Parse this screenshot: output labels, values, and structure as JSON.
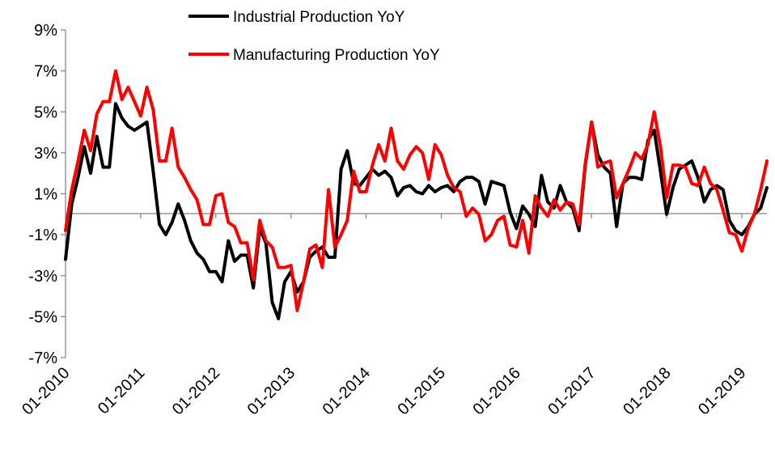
{
  "chart_data": {
    "type": "line",
    "title": "",
    "xlabel": "",
    "ylabel": "",
    "y_unit": "%",
    "ylim": [
      -7,
      9
    ],
    "y_ticks": [
      9,
      7,
      5,
      3,
      1,
      -1,
      -3,
      -5,
      -7
    ],
    "y_tick_labels": [
      "9%",
      "7%",
      "5%",
      "3%",
      "1%",
      "-1%",
      "-3%",
      "-5%",
      "-7%"
    ],
    "x_tick_labels": [
      "01-2010",
      "01-2011",
      "01-2012",
      "01-2013",
      "01-2014",
      "01-2015",
      "01-2016",
      "01-2017",
      "01-2018",
      "01-2019"
    ],
    "x_start": "2010-01",
    "x_end": "2019-05",
    "grid": false,
    "legend_position": "top-center",
    "series": [
      {
        "name": "Industrial Production YoY",
        "color": "#000000",
        "x": [
          "2010-01",
          "2010-02",
          "2010-03",
          "2010-04",
          "2010-05",
          "2010-06",
          "2010-07",
          "2010-08",
          "2010-09",
          "2010-10",
          "2010-11",
          "2010-12",
          "2011-01",
          "2011-02",
          "2011-03",
          "2011-04",
          "2011-05",
          "2011-06",
          "2011-07",
          "2011-08",
          "2011-09",
          "2011-10",
          "2011-11",
          "2011-12",
          "2012-01",
          "2012-02",
          "2012-03",
          "2012-04",
          "2012-05",
          "2012-06",
          "2012-07",
          "2012-08",
          "2012-09",
          "2012-10",
          "2012-11",
          "2012-12",
          "2013-01",
          "2013-02",
          "2013-03",
          "2013-04",
          "2013-05",
          "2013-06",
          "2013-07",
          "2013-08",
          "2013-09",
          "2013-10",
          "2013-11",
          "2013-12",
          "2014-01",
          "2014-02",
          "2014-03",
          "2014-04",
          "2014-05",
          "2014-06",
          "2014-07",
          "2014-08",
          "2014-09",
          "2014-10",
          "2014-11",
          "2014-12",
          "2015-01",
          "2015-02",
          "2015-03",
          "2015-04",
          "2015-05",
          "2015-06",
          "2015-07",
          "2015-08",
          "2015-09",
          "2015-10",
          "2015-11",
          "2015-12",
          "2016-01",
          "2016-02",
          "2016-03",
          "2016-04",
          "2016-05",
          "2016-06",
          "2016-07",
          "2016-08",
          "2016-09",
          "2016-10",
          "2016-11",
          "2016-12",
          "2017-01",
          "2017-02",
          "2017-03",
          "2017-04",
          "2017-05",
          "2017-06",
          "2017-07",
          "2017-08",
          "2017-09",
          "2017-10",
          "2017-11",
          "2017-12",
          "2018-01",
          "2018-02",
          "2018-03",
          "2018-04",
          "2018-05",
          "2018-06",
          "2018-07",
          "2018-08",
          "2018-09",
          "2018-10",
          "2018-11",
          "2018-12",
          "2019-01",
          "2019-02",
          "2019-03",
          "2019-04",
          "2019-05"
        ],
        "values": [
          -2.2,
          0.5,
          1.8,
          3.3,
          2.0,
          3.8,
          2.3,
          2.3,
          5.4,
          4.7,
          4.3,
          4.1,
          4.3,
          4.5,
          2.1,
          -0.5,
          -1.0,
          -0.4,
          0.5,
          -0.3,
          -1.3,
          -1.9,
          -2.2,
          -2.8,
          -2.8,
          -3.3,
          -1.3,
          -2.3,
          -2.0,
          -2.0,
          -3.6,
          -0.7,
          -1.4,
          -4.3,
          -5.1,
          -3.3,
          -2.8,
          -3.8,
          -3.3,
          -2.1,
          -1.8,
          -1.6,
          -2.1,
          -2.1,
          2.2,
          3.1,
          1.5,
          1.4,
          1.8,
          2.2,
          1.9,
          2.1,
          1.8,
          0.9,
          1.3,
          1.4,
          1.1,
          1.0,
          1.4,
          1.1,
          1.3,
          1.4,
          1.1,
          1.6,
          1.8,
          1.8,
          1.6,
          0.5,
          1.6,
          1.5,
          1.4,
          0.1,
          -0.7,
          0.4,
          0.0,
          -0.6,
          1.9,
          0.6,
          0.3,
          1.4,
          0.6,
          0.3,
          -0.8,
          2.4,
          4.5,
          2.9,
          2.3,
          2.0,
          -0.6,
          1.5,
          1.8,
          1.8,
          1.7,
          3.6,
          4.1,
          2.1,
          0.0,
          1.3,
          2.2,
          2.4,
          2.6,
          1.8,
          0.6,
          1.2,
          1.4,
          1.2,
          -0.3,
          -0.8,
          -1.0,
          -0.6,
          0.0,
          0.3,
          1.3
        ]
      },
      {
        "name": "Manufacturing Production YoY",
        "color": "#ff0000",
        "x": [
          "2010-01",
          "2010-02",
          "2010-03",
          "2010-04",
          "2010-05",
          "2010-06",
          "2010-07",
          "2010-08",
          "2010-09",
          "2010-10",
          "2010-11",
          "2010-12",
          "2011-01",
          "2011-02",
          "2011-03",
          "2011-04",
          "2011-05",
          "2011-06",
          "2011-07",
          "2011-08",
          "2011-09",
          "2011-10",
          "2011-11",
          "2011-12",
          "2012-01",
          "2012-02",
          "2012-03",
          "2012-04",
          "2012-05",
          "2012-06",
          "2012-07",
          "2012-08",
          "2012-09",
          "2012-10",
          "2012-11",
          "2012-12",
          "2013-01",
          "2013-02",
          "2013-03",
          "2013-04",
          "2013-05",
          "2013-06",
          "2013-07",
          "2013-08",
          "2013-09",
          "2013-10",
          "2013-11",
          "2013-12",
          "2014-01",
          "2014-02",
          "2014-03",
          "2014-04",
          "2014-05",
          "2014-06",
          "2014-07",
          "2014-08",
          "2014-09",
          "2014-10",
          "2014-11",
          "2014-12",
          "2015-01",
          "2015-02",
          "2015-03",
          "2015-04",
          "2015-05",
          "2015-06",
          "2015-07",
          "2015-08",
          "2015-09",
          "2015-10",
          "2015-11",
          "2015-12",
          "2016-01",
          "2016-02",
          "2016-03",
          "2016-04",
          "2016-05",
          "2016-06",
          "2016-07",
          "2016-08",
          "2016-09",
          "2016-10",
          "2016-11",
          "2016-12",
          "2017-01",
          "2017-02",
          "2017-03",
          "2017-04",
          "2017-05",
          "2017-06",
          "2017-07",
          "2017-08",
          "2017-09",
          "2017-10",
          "2017-11",
          "2017-12",
          "2018-01",
          "2018-02",
          "2018-03",
          "2018-04",
          "2018-05",
          "2018-06",
          "2018-07",
          "2018-08",
          "2018-09",
          "2018-10",
          "2018-11",
          "2018-12",
          "2019-01",
          "2019-02",
          "2019-03",
          "2019-04",
          "2019-05"
        ],
        "values": [
          -0.8,
          1.2,
          2.6,
          4.1,
          3.1,
          4.9,
          5.5,
          5.5,
          7.0,
          5.6,
          6.2,
          5.5,
          4.8,
          6.2,
          5.1,
          2.6,
          2.6,
          4.2,
          2.3,
          1.8,
          1.2,
          0.7,
          -0.5,
          -0.5,
          0.9,
          1.0,
          -0.4,
          -0.6,
          -1.4,
          -1.4,
          -3.2,
          -0.3,
          -1.3,
          -1.6,
          -2.6,
          -2.6,
          -2.5,
          -4.7,
          -3.3,
          -1.7,
          -1.5,
          -2.6,
          1.2,
          -1.6,
          -1.0,
          -0.3,
          2.1,
          1.1,
          1.1,
          2.4,
          3.4,
          2.6,
          4.2,
          2.6,
          2.2,
          2.9,
          3.3,
          3.0,
          1.7,
          3.4,
          2.9,
          1.9,
          1.3,
          1.1,
          -0.1,
          0.3,
          0.0,
          -1.3,
          -1.0,
          -0.3,
          -0.1,
          -1.5,
          -1.6,
          -0.3,
          -1.9,
          0.9,
          0.3,
          -0.1,
          0.7,
          0.2,
          0.6,
          0.5,
          -0.5,
          2.5,
          4.5,
          2.3,
          2.5,
          2.6,
          0.8,
          1.5,
          2.2,
          3.0,
          2.7,
          3.4,
          5.0,
          3.3,
          0.8,
          2.4,
          2.4,
          2.3,
          1.5,
          1.4,
          2.3,
          1.5,
          1.2,
          0.2,
          -0.9,
          -1.0,
          -1.8,
          -0.7,
          0.0,
          1.2,
          2.6
        ]
      }
    ]
  }
}
